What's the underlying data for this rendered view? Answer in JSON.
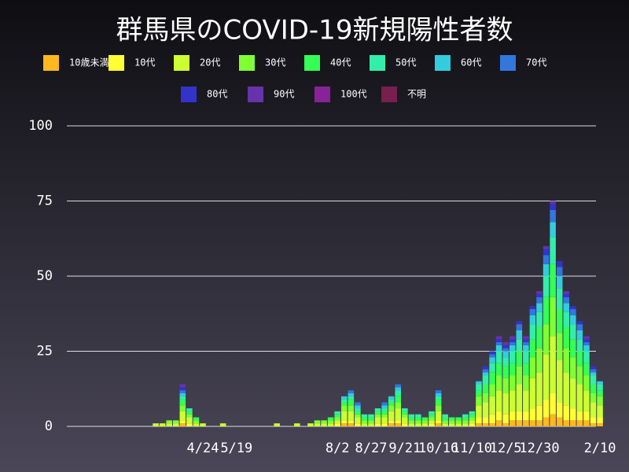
{
  "chart_data": {
    "type": "stacked-bar",
    "title": "群馬県のCOVID-19新規陽性者数",
    "categories": [
      null,
      null,
      null,
      null,
      null,
      null,
      null,
      null,
      null,
      null,
      null,
      null,
      "4/24",
      null,
      null,
      null,
      null,
      "5/19",
      null,
      null,
      null,
      null,
      null,
      null,
      null,
      null,
      null,
      null,
      null,
      null,
      null,
      null,
      "8/2",
      null,
      null,
      null,
      null,
      "8/27",
      null,
      null,
      null,
      null,
      "9/21",
      null,
      null,
      null,
      null,
      "10/16",
      null,
      null,
      null,
      null,
      "11/10",
      null,
      null,
      null,
      null,
      "12/5",
      null,
      null,
      null,
      null,
      "12/30",
      null,
      null,
      null,
      null,
      null,
      null,
      null,
      null,
      "2/10"
    ],
    "ylim": [
      0,
      100
    ],
    "yticks": [
      0,
      25,
      50,
      75,
      100
    ],
    "grid": true,
    "series": [
      {
        "name": "10歳未満",
        "color": "#ffb81f",
        "values": [
          0,
          0,
          0,
          0,
          0,
          0,
          0,
          0,
          0,
          1,
          0,
          0,
          0,
          0,
          0,
          0,
          0,
          0,
          0,
          0,
          0,
          0,
          0,
          0,
          0,
          0,
          0,
          0,
          0,
          0,
          0,
          0,
          0,
          1,
          1,
          0,
          0,
          0,
          0,
          0,
          1,
          1,
          0,
          0,
          0,
          0,
          0,
          1,
          0,
          0,
          0,
          0,
          0,
          1,
          1,
          1,
          2,
          1,
          2,
          2,
          2,
          2,
          2,
          3,
          4,
          3,
          2,
          2,
          2,
          2,
          1,
          1
        ]
      },
      {
        "name": "10代",
        "color": "#ffff33",
        "values": [
          0,
          0,
          0,
          0,
          0,
          0,
          0,
          0,
          0,
          1,
          1,
          0,
          0,
          0,
          0,
          0,
          0,
          0,
          0,
          0,
          0,
          0,
          0,
          0,
          0,
          0,
          0,
          0,
          0,
          0,
          0,
          0,
          1,
          1,
          1,
          1,
          0,
          0,
          1,
          1,
          1,
          1,
          1,
          0,
          0,
          0,
          1,
          1,
          0,
          0,
          0,
          0,
          1,
          2,
          2,
          3,
          3,
          3,
          3,
          3,
          3,
          4,
          5,
          6,
          7,
          5,
          5,
          4,
          3,
          3,
          2,
          2
        ]
      },
      {
        "name": "20代",
        "color": "#ccff33",
        "values": [
          0,
          0,
          0,
          0,
          0,
          1,
          1,
          1,
          1,
          3,
          2,
          1,
          1,
          0,
          0,
          1,
          0,
          0,
          0,
          0,
          0,
          0,
          0,
          1,
          0,
          0,
          1,
          0,
          1,
          1,
          1,
          1,
          1,
          3,
          3,
          2,
          1,
          1,
          2,
          2,
          3,
          4,
          2,
          1,
          1,
          1,
          1,
          3,
          1,
          1,
          1,
          1,
          1,
          4,
          5,
          6,
          7,
          7,
          7,
          9,
          7,
          10,
          11,
          15,
          19,
          14,
          11,
          10,
          9,
          7,
          5,
          4
        ]
      },
      {
        "name": "30代",
        "color": "#80ff33",
        "values": [
          0,
          0,
          0,
          0,
          0,
          0,
          0,
          1,
          1,
          2,
          1,
          1,
          0,
          0,
          0,
          0,
          0,
          0,
          0,
          0,
          0,
          0,
          0,
          0,
          0,
          0,
          0,
          0,
          0,
          1,
          1,
          1,
          1,
          2,
          2,
          1,
          1,
          1,
          1,
          1,
          2,
          2,
          1,
          1,
          1,
          1,
          1,
          2,
          1,
          1,
          1,
          1,
          1,
          3,
          3,
          4,
          5,
          5,
          5,
          6,
          5,
          7,
          8,
          10,
          13,
          9,
          8,
          7,
          6,
          5,
          3,
          3
        ]
      },
      {
        "name": "40代",
        "color": "#33ff55",
        "values": [
          0,
          0,
          0,
          0,
          0,
          0,
          0,
          0,
          0,
          2,
          1,
          1,
          0,
          0,
          0,
          0,
          0,
          0,
          0,
          0,
          0,
          0,
          0,
          0,
          0,
          0,
          0,
          0,
          0,
          0,
          0,
          1,
          1,
          1,
          2,
          1,
          1,
          1,
          1,
          1,
          1,
          2,
          1,
          1,
          1,
          1,
          1,
          2,
          1,
          1,
          1,
          1,
          1,
          2,
          3,
          4,
          4,
          4,
          4,
          5,
          4,
          6,
          7,
          9,
          11,
          8,
          7,
          6,
          5,
          4,
          3,
          2
        ]
      },
      {
        "name": "50代",
        "color": "#33eeaa",
        "values": [
          0,
          0,
          0,
          0,
          0,
          0,
          0,
          0,
          0,
          1,
          1,
          0,
          0,
          0,
          0,
          0,
          0,
          0,
          0,
          0,
          0,
          0,
          0,
          0,
          0,
          0,
          0,
          0,
          0,
          0,
          0,
          0,
          1,
          1,
          1,
          1,
          1,
          1,
          1,
          1,
          1,
          2,
          1,
          1,
          1,
          0,
          1,
          1,
          1,
          0,
          0,
          1,
          1,
          2,
          3,
          3,
          4,
          3,
          4,
          4,
          4,
          5,
          5,
          7,
          9,
          7,
          5,
          5,
          4,
          4,
          3,
          2
        ]
      },
      {
        "name": "60代",
        "color": "#33ccdd",
        "values": [
          0,
          0,
          0,
          0,
          0,
          0,
          0,
          0,
          0,
          1,
          0,
          0,
          0,
          0,
          0,
          0,
          0,
          0,
          0,
          0,
          0,
          0,
          0,
          0,
          0,
          0,
          0,
          0,
          0,
          0,
          0,
          0,
          0,
          1,
          1,
          1,
          0,
          0,
          0,
          1,
          1,
          1,
          0,
          0,
          0,
          0,
          0,
          1,
          0,
          0,
          0,
          0,
          0,
          1,
          1,
          2,
          2,
          2,
          2,
          3,
          2,
          3,
          3,
          4,
          5,
          4,
          3,
          3,
          3,
          2,
          1,
          1
        ]
      },
      {
        "name": "70代",
        "color": "#3377dd",
        "values": [
          0,
          0,
          0,
          0,
          0,
          0,
          0,
          0,
          0,
          1,
          0,
          0,
          0,
          0,
          0,
          0,
          0,
          0,
          0,
          0,
          0,
          0,
          0,
          0,
          0,
          0,
          0,
          0,
          0,
          0,
          0,
          0,
          0,
          0,
          1,
          1,
          0,
          0,
          0,
          1,
          0,
          1,
          0,
          0,
          0,
          0,
          0,
          1,
          0,
          0,
          0,
          0,
          0,
          0,
          1,
          1,
          1,
          1,
          1,
          2,
          1,
          2,
          2,
          3,
          4,
          3,
          2,
          2,
          2,
          1,
          1,
          0
        ]
      },
      {
        "name": "80代",
        "color": "#3333cc",
        "values": [
          0,
          0,
          0,
          0,
          0,
          0,
          0,
          0,
          0,
          1,
          0,
          0,
          0,
          0,
          0,
          0,
          0,
          0,
          0,
          0,
          0,
          0,
          0,
          0,
          0,
          0,
          0,
          0,
          0,
          0,
          0,
          0,
          0,
          0,
          0,
          0,
          0,
          0,
          0,
          0,
          0,
          0,
          0,
          0,
          0,
          0,
          0,
          0,
          0,
          0,
          0,
          0,
          0,
          0,
          1,
          1,
          1,
          1,
          1,
          1,
          1,
          1,
          1,
          2,
          2,
          2,
          1,
          1,
          1,
          1,
          1,
          0
        ]
      },
      {
        "name": "90代",
        "color": "#6633aa",
        "values": [
          0,
          0,
          0,
          0,
          0,
          0,
          0,
          0,
          0,
          1,
          0,
          0,
          0,
          0,
          0,
          0,
          0,
          0,
          0,
          0,
          0,
          0,
          0,
          0,
          0,
          0,
          0,
          0,
          0,
          0,
          0,
          0,
          0,
          0,
          0,
          0,
          0,
          0,
          0,
          0,
          0,
          0,
          0,
          0,
          0,
          0,
          0,
          0,
          0,
          0,
          0,
          0,
          0,
          0,
          0,
          0,
          1,
          1,
          1,
          0,
          1,
          0,
          1,
          1,
          1,
          0,
          1,
          0,
          0,
          1,
          0,
          0
        ]
      },
      {
        "name": "100代",
        "color": "#882299",
        "values": [
          0,
          0,
          0,
          0,
          0,
          0,
          0,
          0,
          0,
          0,
          0,
          0,
          0,
          0,
          0,
          0,
          0,
          0,
          0,
          0,
          0,
          0,
          0,
          0,
          0,
          0,
          0,
          0,
          0,
          0,
          0,
          0,
          0,
          0,
          0,
          0,
          0,
          0,
          0,
          0,
          0,
          0,
          0,
          0,
          0,
          0,
          0,
          0,
          0,
          0,
          0,
          0,
          0,
          0,
          0,
          0,
          0,
          0,
          0,
          0,
          0,
          0,
          0,
          0,
          0,
          0,
          0,
          0,
          0,
          0,
          0,
          0
        ]
      },
      {
        "name": "不明",
        "color": "#771f4f",
        "values": [
          0,
          0,
          0,
          0,
          0,
          0,
          0,
          0,
          0,
          0,
          0,
          0,
          0,
          0,
          0,
          0,
          0,
          0,
          0,
          0,
          0,
          0,
          0,
          0,
          0,
          0,
          0,
          0,
          0,
          0,
          0,
          0,
          0,
          0,
          0,
          0,
          0,
          0,
          0,
          0,
          0,
          0,
          0,
          0,
          0,
          0,
          0,
          0,
          0,
          0,
          0,
          0,
          0,
          0,
          0,
          0,
          0,
          0,
          0,
          0,
          0,
          0,
          0,
          0,
          0,
          0,
          0,
          0,
          0,
          0,
          0,
          0
        ]
      }
    ]
  }
}
